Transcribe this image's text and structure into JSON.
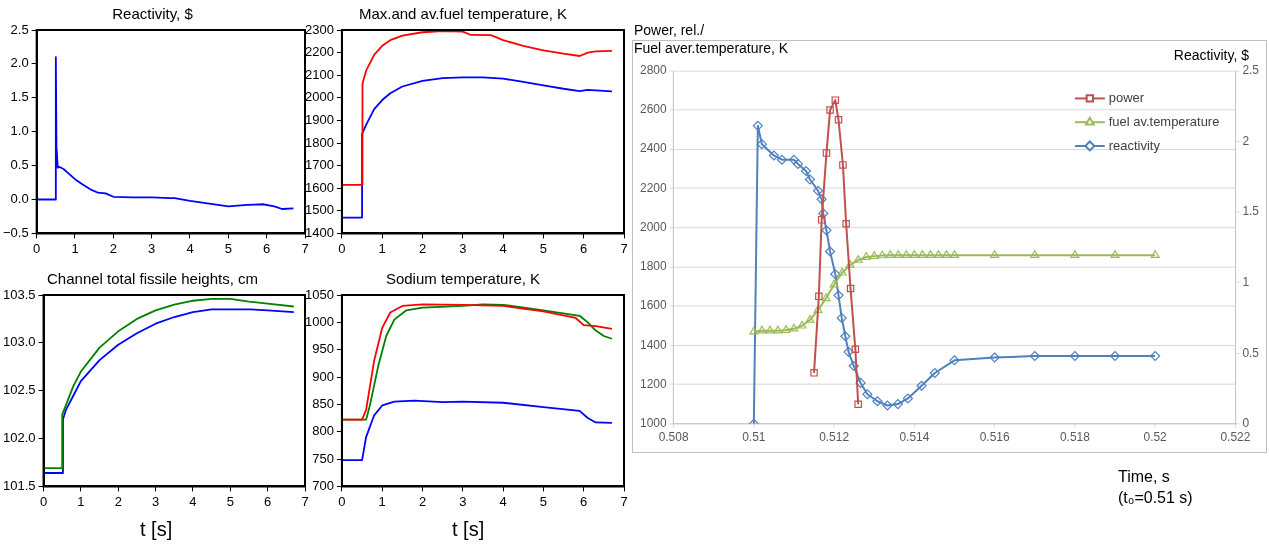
{
  "chart_data": [
    {
      "type": "line",
      "title": "Reactivity, $",
      "xlim": [
        0,
        7
      ],
      "xticks": [
        0,
        1,
        2,
        3,
        4,
        5,
        6,
        7
      ],
      "ylim": [
        -0.5,
        2.5
      ],
      "yticks": [
        {
          "value": -0.5,
          "label": "−0.5"
        },
        {
          "value": 0,
          "label": "0.0"
        },
        0.5,
        {
          "value": 1,
          "label": "1.0"
        },
        1.5,
        {
          "value": 2,
          "label": "2.0"
        },
        2.5
      ],
      "grid": false,
      "legend": false,
      "series": [
        {
          "color": "#0000ff",
          "x": [
            0,
            0.5,
            0.5,
            0.52,
            0.52,
            0.55,
            0.6,
            0.7,
            0.8,
            1.0,
            1.2,
            1.4,
            1.6,
            1.8,
            2.0,
            2.5,
            3,
            3.5,
            3.6,
            4,
            4.5,
            5,
            5.5,
            5.9,
            6.2,
            6.4,
            6.7
          ],
          "values": [
            0,
            0,
            2.1,
            0.5,
            0.75,
            0.47,
            0.48,
            0.45,
            0.4,
            0.3,
            0.22,
            0.15,
            0.1,
            0.09,
            0.04,
            0.03,
            0.03,
            0.02,
            0.02,
            -0.02,
            -0.06,
            -0.1,
            -0.08,
            -0.07,
            -0.1,
            -0.14,
            -0.13
          ]
        }
      ]
    },
    {
      "type": "line",
      "title": "Max.and av.fuel temperature, K",
      "xlim": [
        0,
        7
      ],
      "xticks": [
        0,
        1,
        2,
        3,
        4,
        5,
        6,
        7
      ],
      "ylim": [
        1400,
        2300
      ],
      "yticks": [
        1400,
        1500,
        1600,
        1700,
        1800,
        1900,
        2000,
        2100,
        2200,
        2300
      ],
      "grid": false,
      "legend": false,
      "series": [
        {
          "color": "#ff0000",
          "x": [
            0,
            0.5,
            0.51,
            0.53,
            0.6,
            0.8,
            1.0,
            1.2,
            1.5,
            2,
            2.5,
            3,
            3.2,
            3.7,
            4,
            4.5,
            5,
            5.5,
            5.9,
            6.1,
            6.3,
            6.7
          ],
          "values": [
            1615,
            1615,
            2060,
            2075,
            2120,
            2190,
            2230,
            2255,
            2275,
            2290,
            2295,
            2293,
            2278,
            2277,
            2255,
            2230,
            2210,
            2195,
            2185,
            2200,
            2205,
            2208
          ]
        },
        {
          "color": "#0000ff",
          "x": [
            0,
            0.5,
            0.5,
            0.6,
            0.8,
            1.0,
            1.2,
            1.5,
            2,
            2.5,
            3,
            3.5,
            4,
            4.5,
            5,
            5.5,
            5.9,
            6.1,
            6.7
          ],
          "values": [
            1470,
            1470,
            1840,
            1880,
            1950,
            1990,
            2020,
            2050,
            2075,
            2087,
            2090,
            2090,
            2085,
            2070,
            2055,
            2040,
            2030,
            2035,
            2028
          ]
        }
      ]
    },
    {
      "type": "line",
      "title": "Channel total fissile heights, cm",
      "xlabel": "t [s]",
      "xlim": [
        0,
        7
      ],
      "xticks": [
        0,
        1,
        2,
        3,
        4,
        5,
        6,
        7
      ],
      "ylim": [
        101.5,
        103.5
      ],
      "yticks": [
        101.5,
        {
          "value": 102,
          "label": "102.0"
        },
        102.5,
        {
          "value": 103,
          "label": "103.0"
        },
        103.5
      ],
      "grid": false,
      "legend": false,
      "series": [
        {
          "color": "#008000",
          "x": [
            0,
            0.5,
            0.5,
            0.6,
            0.8,
            1,
            1.5,
            2,
            2.5,
            3,
            3.5,
            4,
            4.5,
            5,
            5.5,
            6,
            6.7
          ],
          "values": [
            101.69,
            101.69,
            102.25,
            102.35,
            102.55,
            102.7,
            102.95,
            103.12,
            103.25,
            103.34,
            103.4,
            103.44,
            103.46,
            103.46,
            103.43,
            103.41,
            103.38
          ]
        },
        {
          "color": "#0000ff",
          "x": [
            0,
            0.5,
            0.52,
            0.6,
            0.8,
            1,
            1.5,
            2,
            2.5,
            3,
            3.5,
            4,
            4.5,
            5,
            5.5,
            6,
            6.7
          ],
          "values": [
            101.64,
            101.64,
            102.2,
            102.3,
            102.45,
            102.6,
            102.82,
            102.98,
            103.1,
            103.2,
            103.27,
            103.32,
            103.35,
            103.35,
            103.35,
            103.34,
            103.32
          ]
        }
      ]
    },
    {
      "type": "line",
      "title": "Sodium temperature, K",
      "xlabel": "t [s]",
      "xlim": [
        0,
        7
      ],
      "xticks": [
        0,
        1,
        2,
        3,
        4,
        5,
        6,
        7
      ],
      "ylim": [
        700,
        1050
      ],
      "yticks": [
        700,
        750,
        800,
        850,
        900,
        950,
        1000,
        1050
      ],
      "grid": false,
      "legend": false,
      "series": [
        {
          "color": "#ff0000",
          "x": [
            0,
            0.5,
            0.6,
            0.8,
            1.0,
            1.2,
            1.5,
            2,
            3,
            4,
            5,
            5.8,
            6,
            6.3,
            6.7
          ],
          "values": [
            822,
            822,
            840,
            930,
            990,
            1018,
            1030,
            1033,
            1032,
            1030,
            1020,
            1008,
            995,
            993,
            988
          ]
        },
        {
          "color": "#008000",
          "x": [
            0,
            0.6,
            0.7,
            0.9,
            1.1,
            1.3,
            1.6,
            2,
            3,
            3.5,
            4,
            5,
            5.9,
            6.1,
            6.3,
            6.5,
            6.7
          ],
          "values": [
            822,
            822,
            850,
            920,
            975,
            1005,
            1022,
            1027,
            1030,
            1033,
            1032,
            1022,
            1012,
            1000,
            985,
            975,
            970
          ]
        },
        {
          "color": "#0000ff",
          "x": [
            0,
            0.5,
            0.6,
            0.8,
            1.0,
            1.3,
            1.8,
            2.5,
            3,
            4,
            5,
            5.9,
            6.1,
            6.3,
            6.7
          ],
          "values": [
            748,
            748,
            790,
            830,
            848,
            855,
            857,
            854,
            855,
            853,
            845,
            838,
            825,
            817,
            816
          ]
        }
      ]
    },
    {
      "type": "line",
      "ylabel": "Power, rel./\nFuel aver.temperature, K",
      "y2label": "Reactivity, $",
      "xlabel": "Time, s",
      "annotations": [
        "(t₀=0.51 s)"
      ],
      "xlim": [
        0.508,
        0.522
      ],
      "xticks": [
        0.508,
        0.51,
        0.512,
        0.514,
        0.516,
        0.518,
        0.52,
        0.522
      ],
      "ylim": [
        1000,
        2800
      ],
      "yticks": [
        1000,
        1200,
        1400,
        1600,
        1800,
        2000,
        2200,
        2400,
        2600,
        2800
      ],
      "y2lim": [
        0,
        2.5
      ],
      "y2ticks": [
        0,
        0.5,
        1,
        1.5,
        2,
        2.5
      ],
      "grid": "y",
      "legend": "top right",
      "series": [
        {
          "name": "power",
          "color": "#c0504d",
          "marker": "square",
          "x": [
            0.5115,
            0.51162,
            0.51169,
            0.51181,
            0.5119,
            0.51203,
            0.51211,
            0.51222,
            0.5123,
            0.51241,
            0.51253,
            0.5126
          ],
          "values": [
            1260,
            1650,
            2040,
            2380,
            2600,
            2650,
            2550,
            2320,
            2020,
            1690,
            1380,
            1100
          ]
        },
        {
          "name": "fuel av.temperature",
          "color": "#9bbb59",
          "marker": "triangle",
          "x": [
            0.51,
            0.5102,
            0.5104,
            0.5106,
            0.5108,
            0.511,
            0.5112,
            0.5114,
            0.5116,
            0.5118,
            0.512,
            0.5122,
            0.5124,
            0.5126,
            0.5128,
            0.513,
            0.5132,
            0.5134,
            0.5136,
            0.5138,
            0.514,
            0.5142,
            0.5144,
            0.5146,
            0.5148,
            0.515,
            0.516,
            0.517,
            0.518,
            0.519,
            0.52
          ],
          "values": [
            1470,
            1475,
            1475,
            1475,
            1478,
            1485,
            1500,
            1530,
            1580,
            1640,
            1710,
            1770,
            1810,
            1835,
            1850,
            1855,
            1858,
            1860,
            1860,
            1860,
            1860,
            1860,
            1860,
            1860,
            1860,
            1860,
            1860,
            1860,
            1860,
            1860,
            1860
          ]
        },
        {
          "name": "reactivity",
          "color": "#4f81bd",
          "marker": "diamond",
          "axis": "y2",
          "x": [
            0.51,
            0.5101,
            0.5102,
            0.5105,
            0.5107,
            0.511,
            0.5111,
            0.5113,
            0.5114,
            0.5116,
            0.51169,
            0.51173,
            0.51181,
            0.5119,
            0.51203,
            0.51211,
            0.51219,
            0.51228,
            0.51236,
            0.51249,
            0.51266,
            0.51283,
            0.51308,
            0.51333,
            0.51359,
            0.51384,
            0.51418,
            0.51451,
            0.515,
            0.516,
            0.517,
            0.518,
            0.519,
            0.52
          ],
          "values": [
            0,
            2.11,
            1.98,
            1.9,
            1.87,
            1.87,
            1.84,
            1.79,
            1.73,
            1.65,
            1.59,
            1.49,
            1.37,
            1.22,
            1.06,
            0.91,
            0.75,
            0.62,
            0.51,
            0.41,
            0.29,
            0.21,
            0.16,
            0.13,
            0.14,
            0.18,
            0.27,
            0.36,
            0.45,
            0.47,
            0.48,
            0.48,
            0.48,
            0.48
          ]
        }
      ]
    }
  ]
}
